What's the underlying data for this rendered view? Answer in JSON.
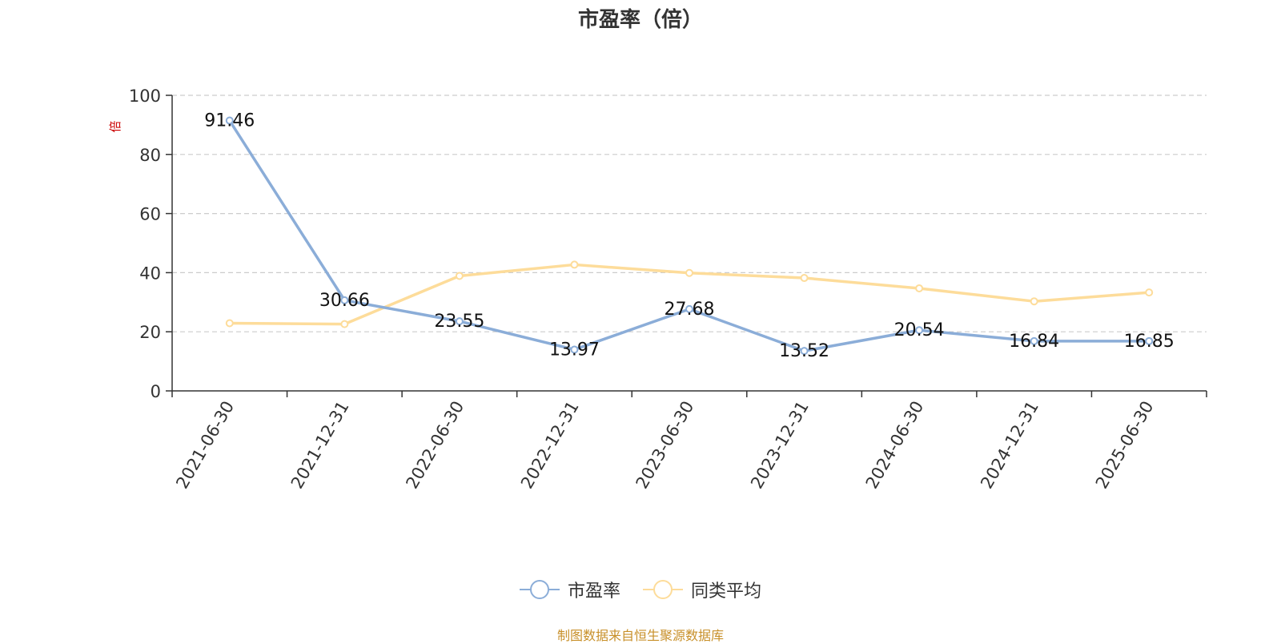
{
  "chart_data": {
    "type": "line",
    "title": "市盈率（倍）",
    "ylabel": "倍",
    "ylim": [
      0,
      100
    ],
    "yticks": [
      0,
      20,
      40,
      60,
      80,
      100
    ],
    "categories": [
      "2021-06-30",
      "2021-12-31",
      "2022-06-30",
      "2022-12-31",
      "2023-06-30",
      "2023-12-31",
      "2024-06-30",
      "2024-12-31",
      "2025-06-30"
    ],
    "series": [
      {
        "name": "市盈率",
        "color": "#8badd8",
        "values": [
          91.46,
          30.66,
          23.55,
          13.97,
          27.68,
          13.52,
          20.54,
          16.84,
          16.85
        ],
        "labels": [
          "91.46",
          "30.66",
          "23.55",
          "13.97",
          "27.68",
          "13.52",
          "20.54",
          "16.84",
          "16.85"
        ]
      },
      {
        "name": "同类平均",
        "color": "#fddc9a",
        "values": [
          22.9,
          22.6,
          38.9,
          42.7,
          39.9,
          38.2,
          34.7,
          30.3,
          33.3
        ]
      }
    ],
    "grid": true,
    "legend_position": "bottom"
  },
  "colors": {
    "axis": "#333333",
    "grid": "#cccccc",
    "ylabel": "#cc0000",
    "source": "#c8902a"
  },
  "source_note": "制图数据来自恒生聚源数据库"
}
